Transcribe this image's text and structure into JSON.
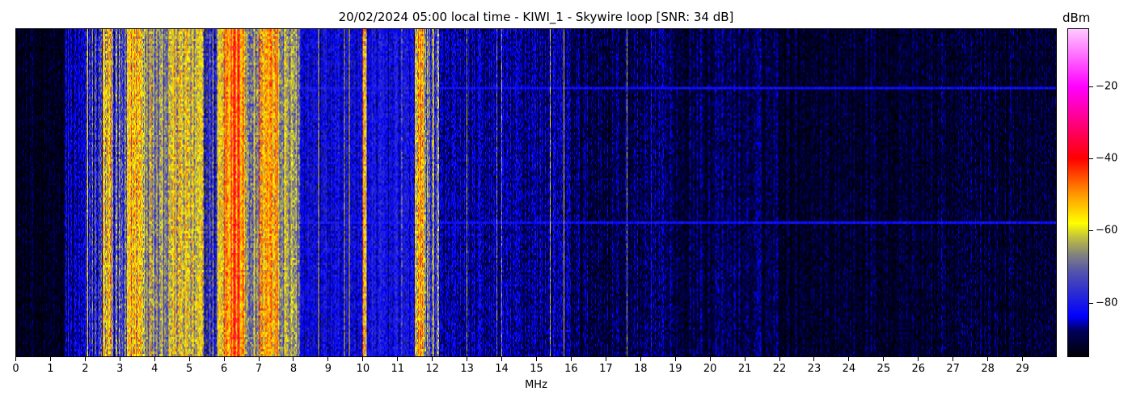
{
  "chart_data": {
    "type": "heatmap",
    "title": "20/02/2024 05:00 local time - KIWI_1 - Skywire loop [SNR: 34 dB]",
    "xlabel": "MHz",
    "ylabel": "",
    "xlim": [
      0,
      30
    ],
    "x_ticks": [
      0,
      1,
      2,
      3,
      4,
      5,
      6,
      7,
      8,
      9,
      10,
      11,
      12,
      13,
      14,
      15,
      16,
      17,
      18,
      19,
      20,
      21,
      22,
      23,
      24,
      25,
      26,
      27,
      28,
      29
    ],
    "colorbar": {
      "label": "dBm",
      "range": [
        -95,
        -4
      ],
      "ticks": [
        -20,
        -40,
        -60,
        -80
      ],
      "colormap": [
        {
          "value": -95,
          "color": "#000008"
        },
        {
          "value": -88,
          "color": "#00005a"
        },
        {
          "value": -84,
          "color": "#0000ff"
        },
        {
          "value": -72,
          "color": "#5050b0"
        },
        {
          "value": -67,
          "color": "#808080"
        },
        {
          "value": -62,
          "color": "#c0c040"
        },
        {
          "value": -58,
          "color": "#ffff00"
        },
        {
          "value": -50,
          "color": "#ff9900"
        },
        {
          "value": -40,
          "color": "#ff0000"
        },
        {
          "value": -30,
          "color": "#ff0080"
        },
        {
          "value": -20,
          "color": "#ff00ff"
        },
        {
          "value": -4,
          "color": "#ffc8ff"
        }
      ]
    },
    "band_levels_dbm": [
      {
        "from": 0.0,
        "to": 1.4,
        "level": -94
      },
      {
        "from": 1.4,
        "to": 2.0,
        "level": -86
      },
      {
        "from": 2.0,
        "to": 2.5,
        "level": -78
      },
      {
        "from": 2.5,
        "to": 2.8,
        "level": -60
      },
      {
        "from": 2.8,
        "to": 3.2,
        "level": -76
      },
      {
        "from": 3.2,
        "to": 3.6,
        "level": -55
      },
      {
        "from": 3.6,
        "to": 4.0,
        "level": -62
      },
      {
        "from": 4.0,
        "to": 4.4,
        "level": -64
      },
      {
        "from": 4.4,
        "to": 5.0,
        "level": -60
      },
      {
        "from": 5.0,
        "to": 5.4,
        "level": -63
      },
      {
        "from": 5.4,
        "to": 5.8,
        "level": -78
      },
      {
        "from": 5.8,
        "to": 6.0,
        "level": -58
      },
      {
        "from": 6.0,
        "to": 6.6,
        "level": -46
      },
      {
        "from": 6.6,
        "to": 7.0,
        "level": -66
      },
      {
        "from": 7.0,
        "to": 7.6,
        "level": -53
      },
      {
        "from": 7.6,
        "to": 8.2,
        "level": -68
      },
      {
        "from": 8.2,
        "to": 10.0,
        "level": -83
      },
      {
        "from": 10.0,
        "to": 10.1,
        "level": -55
      },
      {
        "from": 10.1,
        "to": 11.5,
        "level": -82
      },
      {
        "from": 11.5,
        "to": 11.8,
        "level": -56
      },
      {
        "from": 11.8,
        "to": 12.2,
        "level": -72
      },
      {
        "from": 12.2,
        "to": 16.0,
        "level": -87
      },
      {
        "from": 16.0,
        "to": 22.0,
        "level": -90
      },
      {
        "from": 22.0,
        "to": 30.0,
        "level": -92
      }
    ],
    "narrowband_signals_dbm": [
      {
        "freq": 1.5,
        "level": -80
      },
      {
        "freq": 2.05,
        "level": -58
      },
      {
        "freq": 7.3,
        "level": -55
      },
      {
        "freq": 8.7,
        "level": -60
      },
      {
        "freq": 9.45,
        "level": -62
      },
      {
        "freq": 9.6,
        "level": -58
      },
      {
        "freq": 11.1,
        "level": -70
      },
      {
        "freq": 12.05,
        "level": -58
      },
      {
        "freq": 13.0,
        "level": -66
      },
      {
        "freq": 13.85,
        "level": -70
      },
      {
        "freq": 14.0,
        "level": -68
      },
      {
        "freq": 15.4,
        "level": -62
      },
      {
        "freq": 15.8,
        "level": -58
      },
      {
        "freq": 17.6,
        "level": -66
      },
      {
        "freq": 18.3,
        "level": -82
      }
    ]
  }
}
